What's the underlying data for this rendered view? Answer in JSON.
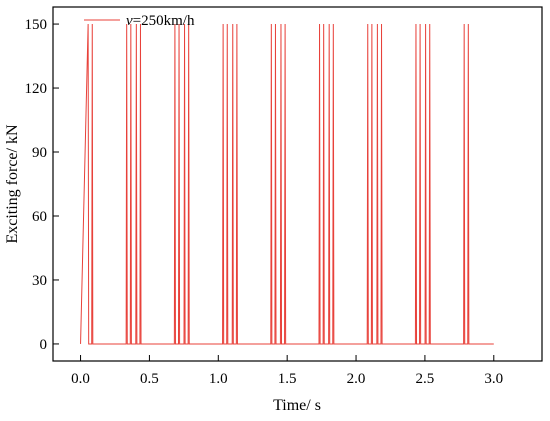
{
  "chart_data": {
    "type": "line",
    "title": "",
    "xlabel": "Time/ s",
    "ylabel": "Exciting force/ kN",
    "xlim": [
      -0.2,
      3.35
    ],
    "ylim": [
      -8,
      158
    ],
    "xticks": [
      0.0,
      0.5,
      1.0,
      1.5,
      2.0,
      2.5,
      3.0
    ],
    "xtick_labels": [
      "0.0",
      "0.5",
      "1.0",
      "1.5",
      "2.0",
      "2.5",
      "3.0"
    ],
    "yticks": [
      0,
      30,
      60,
      90,
      120,
      150
    ],
    "ytick_labels": [
      "0",
      "30",
      "60",
      "90",
      "120",
      "150"
    ],
    "grid": false,
    "legend_position": "top-left",
    "series": [
      {
        "name": "v=250km/h",
        "name_italic_part": "v",
        "name_rest": "=250km/h",
        "color": "#e8413a",
        "baseline": 0,
        "peak": 150,
        "start": [
          0.0,
          0.0
        ],
        "end": [
          3.0,
          0.0
        ],
        "ramp_first_pulse": true,
        "pulses": [
          [
            0.055,
            0.085
          ],
          [
            0.335,
            0.365,
            0.405,
            0.435
          ],
          [
            0.685,
            0.715,
            0.755,
            0.785
          ],
          [
            1.035,
            1.065,
            1.105,
            1.135
          ],
          [
            1.385,
            1.415,
            1.455,
            1.485
          ],
          [
            1.735,
            1.765,
            1.805,
            1.835
          ],
          [
            2.085,
            2.115,
            2.155,
            2.185
          ],
          [
            2.435,
            2.465,
            2.505,
            2.535
          ],
          [
            2.785,
            2.815
          ]
        ]
      }
    ]
  }
}
